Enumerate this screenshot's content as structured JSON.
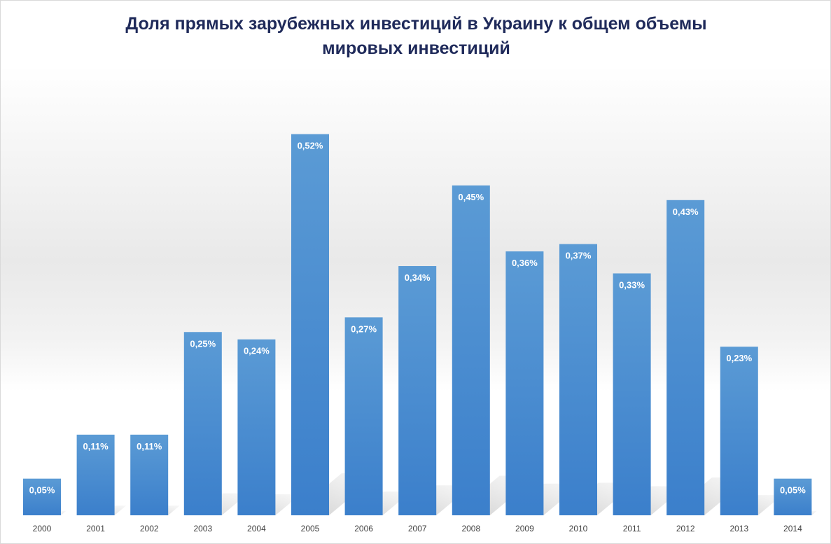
{
  "chart_data": {
    "type": "bar",
    "title_line1": "Доля прямых зарубежных инвестиций в Украину к общем объемы",
    "title_line2": "мировых инвестиций",
    "categories": [
      "2000",
      "2001",
      "2002",
      "2003",
      "2004",
      "2005",
      "2006",
      "2007",
      "2008",
      "2009",
      "2010",
      "2011",
      "2012",
      "2013",
      "2014"
    ],
    "values": [
      0.05,
      0.11,
      0.11,
      0.25,
      0.24,
      0.52,
      0.27,
      0.34,
      0.45,
      0.36,
      0.37,
      0.33,
      0.43,
      0.23,
      0.05
    ],
    "data_labels": [
      "0,05%",
      "0,11%",
      "0,11%",
      "0,25%",
      "0,24%",
      "0,52%",
      "0,27%",
      "0,34%",
      "0,45%",
      "0,36%",
      "0,37%",
      "0,33%",
      "0,43%",
      "0,23%",
      "0,05%"
    ],
    "unit": "%",
    "xlabel": "",
    "ylabel": "",
    "grid": false,
    "legend": "none",
    "colors": {
      "bar_top": "#5b9bd5",
      "bar_bottom": "#3b7fcb",
      "title": "#1f2a5a"
    }
  }
}
